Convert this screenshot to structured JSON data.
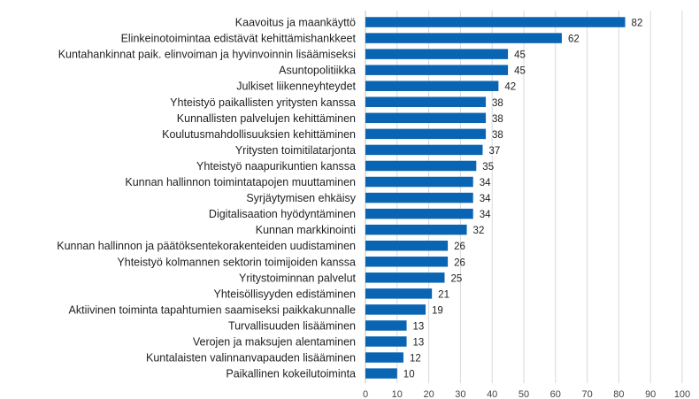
{
  "chart_data": {
    "type": "bar",
    "orientation": "horizontal",
    "categories": [
      "Kaavoitus ja maankäyttö",
      "Elinkeinotoimintaa edistävät kehittämishankkeet",
      "Kuntahankinnat paik. elinvoiman ja hyvinvoinnin lisäämiseksi",
      "Asuntopolitiikka",
      "Julkiset liikenneyhteydet",
      "Yhteistyö paikallisten yritysten kanssa",
      "Kunnallisten palvelujen kehittäminen",
      "Koulutusmahdollisuuksien kehittäminen",
      "Yritysten toimitilatarjonta",
      "Yhteistyö naapurikuntien kanssa",
      "Kunnan hallinnon toimintatapojen muuttaminen",
      "Syrjäytymisen ehkäisy",
      "Digitalisaation hyödyntäminen",
      "Kunnan markkinointi",
      "Kunnan hallinnon ja päätöksentekorakenteiden uudistaminen",
      "Yhteistyö kolmannen sektorin toimijoiden kanssa",
      "Yritystoiminnan palvelut",
      "Yhteisöllisyyden edistäminen",
      "Aktiivinen toiminta tapahtumien saamiseksi paikkakunnalle",
      "Turvallisuuden lisääminen",
      "Verojen ja maksujen alentaminen",
      "Kuntalaisten valinnanvapauden lisääminen",
      "Paikallinen kokeilutoiminta"
    ],
    "values": [
      82,
      62,
      45,
      45,
      42,
      38,
      38,
      38,
      37,
      35,
      34,
      34,
      34,
      32,
      26,
      26,
      25,
      21,
      19,
      13,
      13,
      12,
      10
    ],
    "xlim": [
      0,
      100
    ],
    "xticks": [
      0,
      10,
      20,
      30,
      40,
      50,
      60,
      70,
      80,
      90,
      100
    ],
    "grid": true,
    "bar_color": "#0a64b4",
    "data_labels": true,
    "title": "",
    "xlabel": "",
    "ylabel": ""
  }
}
